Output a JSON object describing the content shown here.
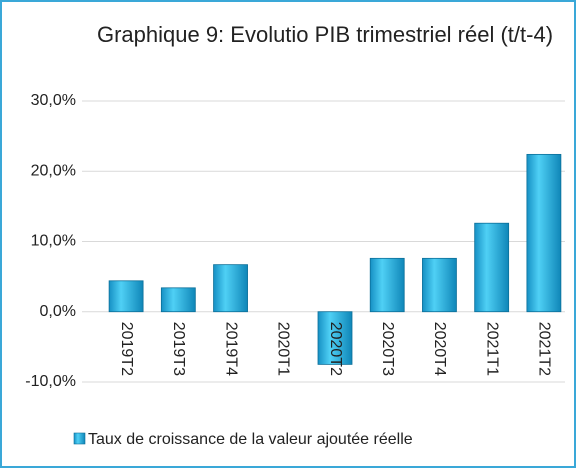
{
  "chart_data": {
    "type": "bar",
    "title": "Graphique 9: Evolutio PIB trimestriel réel (t/t-4)",
    "categories": [
      "2019T2",
      "2019T3",
      "2019T4",
      "2020T1",
      "2020T2",
      "2020T3",
      "2020T4",
      "2021T1",
      "2021T2"
    ],
    "series": [
      {
        "name": "Taux de croissance de la valeur ajoutée réelle",
        "color": "#29b6e8",
        "values": [
          4.4,
          3.4,
          6.7,
          0,
          -7.5,
          7.6,
          7.6,
          12.6,
          22.4
        ]
      }
    ],
    "ylim": [
      -12,
      30
    ],
    "yticks": [
      {
        "value": -10,
        "label": "-10,0%"
      },
      {
        "value": 0,
        "label": "0,0%"
      },
      {
        "value": 10,
        "label": "10,0%"
      },
      {
        "value": 20,
        "label": "20,0%"
      },
      {
        "value": 30,
        "label": "30,0%"
      }
    ],
    "grid": true,
    "legend": "bottom"
  }
}
